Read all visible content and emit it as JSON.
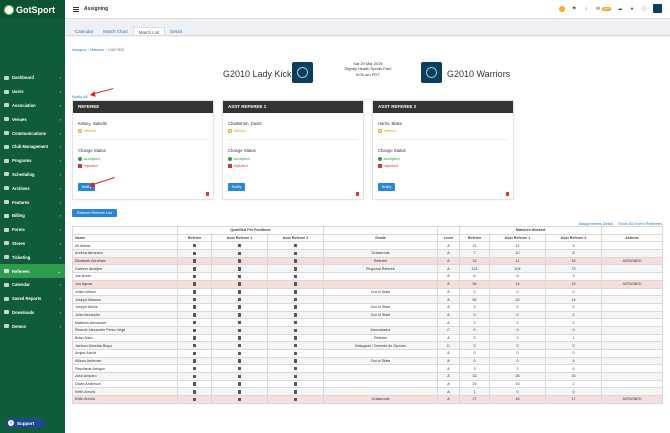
{
  "brand": {
    "logo_text": "GotSport"
  },
  "topbar": {
    "title": "Assigning",
    "mail_badge": "99+"
  },
  "sidebar": {
    "items": [
      {
        "label": "Dashboard"
      },
      {
        "label": "Users"
      },
      {
        "label": "Association"
      },
      {
        "label": "Venues"
      },
      {
        "label": "Communications"
      },
      {
        "label": "Club Management"
      },
      {
        "label": "Programs"
      },
      {
        "label": "Scheduling"
      },
      {
        "label": "Archives"
      },
      {
        "label": "Features"
      },
      {
        "label": "Billing"
      },
      {
        "label": "Forms"
      },
      {
        "label": "Stores"
      },
      {
        "label": "Ticketing"
      },
      {
        "label": "Referees"
      },
      {
        "label": "Calendar"
      },
      {
        "label": "Saved Reports"
      },
      {
        "label": "Downloads"
      },
      {
        "label": "Demos"
      }
    ],
    "active_index": 14,
    "support_label": "Support"
  },
  "tabs": [
    {
      "label": "Calendar"
    },
    {
      "label": "Match Chart"
    },
    {
      "label": "Match List"
    },
    {
      "label": "Detail"
    }
  ],
  "active_tab": 2,
  "breadcrumb": {
    "items": [
      "Assignor",
      "Matches",
      "10807835"
    ]
  },
  "match": {
    "home_team": "G2010 Lady Kickers",
    "away_team": "G2010 Warriors",
    "date": "Sat 29 Mar 2025",
    "venue": "Dignity Health Sports Park",
    "time": "8:00 am PDT"
  },
  "notify_all_label": "Notify All",
  "ref_cards": [
    {
      "title": "REFEREE",
      "name": "Kelsey, Isabelle",
      "status": "offered",
      "change_status_label": "Change Status",
      "accepted_label": "accepted",
      "rejected_label": "rejected",
      "notify_label": "Notify"
    },
    {
      "title": "ASST REFEREE 1",
      "name": "Chadstrom, David",
      "status": "offered",
      "change_status_label": "Change Status",
      "accepted_label": "accepted",
      "rejected_label": "rejected",
      "notify_label": "Notify"
    },
    {
      "title": "ASST REFEREE 2",
      "name": "Harris, Blake",
      "status": "offered",
      "change_status_label": "Change Status",
      "accepted_label": "accepted",
      "rejected_label": "rejected",
      "notify_label": "Notify"
    }
  ],
  "refresh_label": "Refresh Referee List",
  "links": {
    "assignments_detail": "Assignments Detail",
    "show_all": "Show All Event Referees"
  },
  "table": {
    "group_headers": {
      "qualified": "Qualified For Positions",
      "matches_worked": "Matches Worked"
    },
    "headers": [
      "Name",
      "Referee",
      "Asst Referee 1",
      "Asst Referee 2",
      "Grade",
      "Level",
      "Referee",
      "Asst Referee 1",
      "Asst Referee 2",
      "Actions"
    ],
    "rows": [
      {
        "name": "Ali Abbas",
        "grade": "",
        "level": "A",
        "mw": [
          "21",
          "12",
          "4"
        ],
        "action": "",
        "style": ""
      },
      {
        "name": "Andrea Abraham",
        "grade": "Grassroots",
        "level": "A",
        "mw": [
          "7",
          "10",
          "8"
        ],
        "action": "",
        "style": "even"
      },
      {
        "name": "Elizabeth Abraham",
        "grade": "Referee",
        "level": "A",
        "mw": [
          "16",
          "11",
          "15"
        ],
        "action": "ASSIGNED",
        "style": "pink"
      },
      {
        "name": "Galeem Abuttjee",
        "grade": "Regional Referee",
        "level": "A",
        "mw": [
          "124",
          "104",
          "73"
        ],
        "action": "",
        "style": "even"
      },
      {
        "name": "Joe Acker",
        "grade": "",
        "level": "A",
        "mw": [
          "6",
          "6",
          "3"
        ],
        "action": "",
        "style": ""
      },
      {
        "name": "Jon Aguas",
        "grade": "",
        "level": "A",
        "mw": [
          "56",
          "14",
          "15"
        ],
        "action": "ASSIGNED",
        "style": "pink"
      },
      {
        "name": "Julian Albani",
        "grade": "Out of State",
        "level": "A",
        "mw": [
          "0",
          "0",
          "0"
        ],
        "action": "",
        "style": ""
      },
      {
        "name": "Joseph Albaces",
        "grade": "",
        "level": "A",
        "mw": [
          "50",
          "23",
          "14"
        ],
        "action": "",
        "style": "even"
      },
      {
        "name": "Joseph Alexis",
        "grade": "Out of State",
        "level": "A",
        "mw": [
          "0",
          "0",
          "0"
        ],
        "action": "",
        "style": ""
      },
      {
        "name": "Julia Alexander",
        "grade": "Out of State",
        "level": "A",
        "mw": [
          "0",
          "0",
          "2"
        ],
        "action": "",
        "style": "even"
      },
      {
        "name": "Matthew Alexander",
        "grade": "",
        "level": "A",
        "mw": [
          "2",
          "0",
          "0"
        ],
        "action": "",
        "style": ""
      },
      {
        "name": "Ricardo Alexandre Perez Vega",
        "grade": "Arrecadador",
        "level": "C",
        "mw": [
          "0",
          "0",
          "0"
        ],
        "action": "",
        "style": "even"
      },
      {
        "name": "Brian Allan",
        "grade": "Referee",
        "level": "A",
        "mw": [
          "3",
          "2",
          "1"
        ],
        "action": "",
        "style": ""
      },
      {
        "name": "Jaelson Almeida Bispo",
        "grade": "Delegado / Gerente de Opcoes",
        "level": "D",
        "mw": [
          "0",
          "0",
          "0"
        ],
        "action": "",
        "style": "even"
      },
      {
        "name": "Amjad Alzubi",
        "grade": "",
        "level": "A",
        "mw": [
          "0",
          "0",
          "0"
        ],
        "action": "",
        "style": ""
      },
      {
        "name": "Allison Ambrose",
        "grade": "Out of State",
        "level": "A",
        "mw": [
          "0",
          "0",
          "4"
        ],
        "action": "",
        "style": "even"
      },
      {
        "name": "Stephanie Amigon",
        "grade": "",
        "level": "A",
        "mw": [
          "3",
          "2",
          "6"
        ],
        "action": "",
        "style": ""
      },
      {
        "name": "Jose Amparo",
        "grade": "",
        "level": "A",
        "mw": [
          "33",
          "26",
          "15"
        ],
        "action": "",
        "style": "even"
      },
      {
        "name": "David Anderson",
        "grade": "",
        "level": "A",
        "mw": [
          "15",
          "10",
          "2"
        ],
        "action": "",
        "style": ""
      },
      {
        "name": "Keith Arnold",
        "grade": "",
        "level": "A",
        "mw": [
          "1",
          "0",
          "0"
        ],
        "action": "",
        "style": "even"
      },
      {
        "name": "Keith Arnold",
        "grade": "Grassroots",
        "level": "A",
        "mw": [
          "27",
          "16",
          "17"
        ],
        "action": "ASSIGNED",
        "style": "pink"
      }
    ]
  },
  "colors": {
    "sidebar": "#0f5b3a",
    "active_nav": "#2f9b4c",
    "button": "#2a85d8",
    "assigned_row": "#f6dede",
    "annotation_arrow": "#d9271c"
  }
}
